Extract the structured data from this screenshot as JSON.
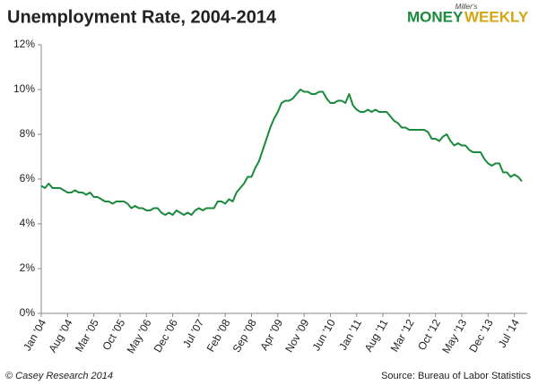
{
  "chart_data": {
    "type": "line",
    "title": "Unemployment Rate, 2004-2014",
    "logo": {
      "tagline": "Miller's",
      "left": "MONEY",
      "right": "WEEKLY"
    },
    "credit": "© Casey Research 2014",
    "source": "Source: Bureau of Labor Statistics",
    "color": "#1a8a3c",
    "categories": [
      "Jan '04",
      null,
      null,
      null,
      null,
      null,
      null,
      "Aug '04",
      null,
      null,
      null,
      null,
      null,
      null,
      "Mar '05",
      null,
      null,
      null,
      null,
      null,
      null,
      "Oct '05",
      null,
      null,
      null,
      null,
      null,
      null,
      "May '06",
      null,
      null,
      null,
      null,
      null,
      null,
      "Dec '06",
      null,
      null,
      null,
      null,
      null,
      null,
      "Jul '07",
      null,
      null,
      null,
      null,
      null,
      null,
      "Feb '08",
      null,
      null,
      null,
      null,
      null,
      null,
      "Sep '08",
      null,
      null,
      null,
      null,
      null,
      null,
      "Apr '09",
      null,
      null,
      null,
      null,
      null,
      null,
      "Nov '09",
      null,
      null,
      null,
      null,
      null,
      null,
      "Jun '10",
      null,
      null,
      null,
      null,
      null,
      null,
      "Jan '11",
      null,
      null,
      null,
      null,
      null,
      null,
      "Aug '11",
      null,
      null,
      null,
      null,
      null,
      null,
      "Mar '12",
      null,
      null,
      null,
      null,
      null,
      null,
      "Oct '12",
      null,
      null,
      null,
      null,
      null,
      null,
      "May '13",
      null,
      null,
      null,
      null,
      null,
      null,
      "Dec '13",
      null,
      null,
      null,
      null,
      null,
      null,
      "Jul '14",
      null,
      null
    ],
    "values": [
      5.7,
      5.6,
      5.8,
      5.6,
      5.6,
      5.6,
      5.5,
      5.4,
      5.4,
      5.5,
      5.4,
      5.4,
      5.3,
      5.4,
      5.2,
      5.2,
      5.1,
      5.0,
      5.0,
      4.9,
      5.0,
      5.0,
      5.0,
      4.9,
      4.7,
      4.8,
      4.7,
      4.7,
      4.6,
      4.6,
      4.7,
      4.7,
      4.5,
      4.4,
      4.5,
      4.4,
      4.6,
      4.5,
      4.4,
      4.5,
      4.4,
      4.6,
      4.7,
      4.6,
      4.7,
      4.7,
      4.7,
      5.0,
      5.0,
      4.9,
      5.1,
      5.0,
      5.4,
      5.6,
      5.8,
      6.1,
      6.1,
      6.5,
      6.8,
      7.3,
      7.8,
      8.3,
      8.7,
      9.0,
      9.4,
      9.5,
      9.5,
      9.6,
      9.8,
      10.0,
      9.9,
      9.9,
      9.8,
      9.8,
      9.9,
      9.9,
      9.6,
      9.4,
      9.4,
      9.5,
      9.5,
      9.4,
      9.8,
      9.3,
      9.1,
      9.0,
      9.0,
      9.1,
      9.0,
      9.1,
      9.0,
      9.0,
      9.0,
      8.8,
      8.6,
      8.5,
      8.3,
      8.3,
      8.2,
      8.2,
      8.2,
      8.2,
      8.2,
      8.1,
      7.8,
      7.8,
      7.7,
      7.9,
      8.0,
      7.7,
      7.5,
      7.6,
      7.5,
      7.5,
      7.3,
      7.2,
      7.2,
      7.2,
      6.9,
      6.7,
      6.6,
      6.7,
      6.7,
      6.3,
      6.3,
      6.1,
      6.2,
      6.1,
      5.9
    ],
    "ylim": [
      0,
      12
    ],
    "yticks": [
      {
        "value": 0,
        "label": "0%"
      },
      {
        "value": 2,
        "label": "2%"
      },
      {
        "value": 4,
        "label": "4%"
      },
      {
        "value": 6,
        "label": "6%"
      },
      {
        "value": 8,
        "label": "8%"
      },
      {
        "value": 10,
        "label": "10%"
      },
      {
        "value": 12,
        "label": "12%"
      }
    ],
    "grid": false
  }
}
